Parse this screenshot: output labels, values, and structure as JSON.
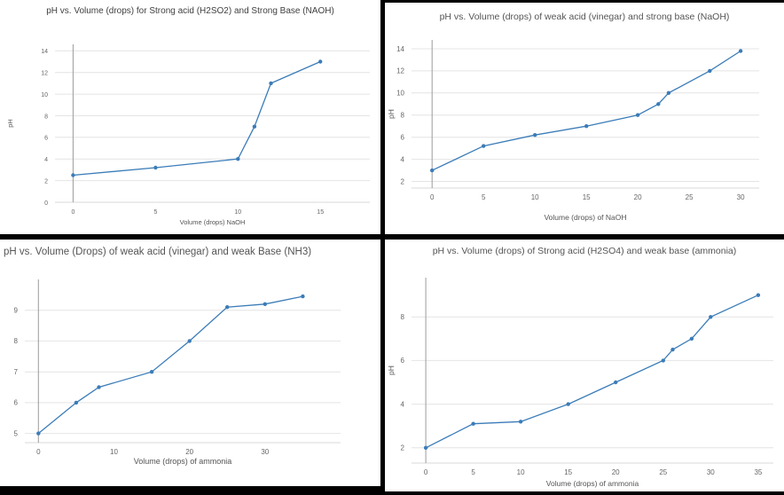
{
  "page": {
    "background": "#000000",
    "panel_background": "#ffffff"
  },
  "chart_data": [
    {
      "type": "line",
      "title": "pH vs. Volume (drops) for Strong acid (H2SO2) and Strong Base (NAOH)",
      "xlabel": "Volume (drops) NaOH",
      "ylabel": "pH",
      "x": [
        0,
        5,
        10,
        11,
        12,
        15
      ],
      "y": [
        2.5,
        3.2,
        4,
        7,
        11,
        13
      ],
      "xlim": [
        -1.1,
        18
      ],
      "ylim": [
        0,
        14.6
      ],
      "xticks": [
        0,
        5,
        10,
        15
      ],
      "yticks": [
        0,
        2,
        4,
        6,
        8,
        10,
        12,
        14
      ],
      "line_color": "#3b7cb8",
      "grid": "horizontal",
      "legend": "none"
    },
    {
      "type": "line",
      "title": "pH vs. Volume (drops) of weak acid (vinegar) and strong base (NaOH)",
      "xlabel": "Volume (drops) of NaOH",
      "ylabel": "pH",
      "x": [
        0,
        5,
        10,
        15,
        20,
        22,
        23,
        27,
        30
      ],
      "y": [
        3,
        5.2,
        6.2,
        7,
        8,
        9,
        10,
        12,
        13.8
      ],
      "xlim": [
        -2,
        31.8
      ],
      "ylim": [
        1.4,
        14.8
      ],
      "xticks": [
        0,
        5,
        10,
        15,
        20,
        25,
        30
      ],
      "yticks": [
        2,
        4,
        6,
        8,
        10,
        12,
        14
      ],
      "line_color": "#3b7cb8",
      "grid": "horizontal",
      "legend": "none"
    },
    {
      "type": "line",
      "title": "pH vs. Volume (Drops) of weak acid (vinegar) and weak Base (NH3)",
      "xlabel": "Volume (drops) of ammonia",
      "ylabel": "",
      "x": [
        0,
        5,
        8,
        15,
        20,
        25,
        30,
        35
      ],
      "y": [
        5,
        6,
        6.5,
        7,
        8,
        9.1,
        9.2,
        9.45
      ],
      "xlim": [
        -1.8,
        40
      ],
      "ylim": [
        4.7,
        10.0
      ],
      "xticks": [
        0,
        10,
        20,
        30
      ],
      "yticks": [
        5,
        6,
        7,
        8,
        9
      ],
      "line_color": "#3b7cb8",
      "grid": "horizontal",
      "legend": "none"
    },
    {
      "type": "line",
      "title": "pH vs. Volume (drops) of Strong acid (H2SO4) and weak base (ammonia)",
      "xlabel": "Volume (drops) of ammonia",
      "ylabel": "pH",
      "x": [
        0,
        5,
        10,
        15,
        20,
        25,
        26,
        28,
        30,
        35
      ],
      "y": [
        2,
        3.1,
        3.2,
        4,
        5,
        6,
        6.5,
        7,
        8,
        9
      ],
      "xlim": [
        -1.5,
        36.6
      ],
      "ylim": [
        1.3,
        9.8
      ],
      "xticks": [
        0,
        5,
        10,
        15,
        20,
        25,
        30,
        35
      ],
      "yticks": [
        2,
        4,
        6,
        8
      ],
      "line_color": "#3b7cb8",
      "grid": "horizontal",
      "legend": "none"
    }
  ]
}
